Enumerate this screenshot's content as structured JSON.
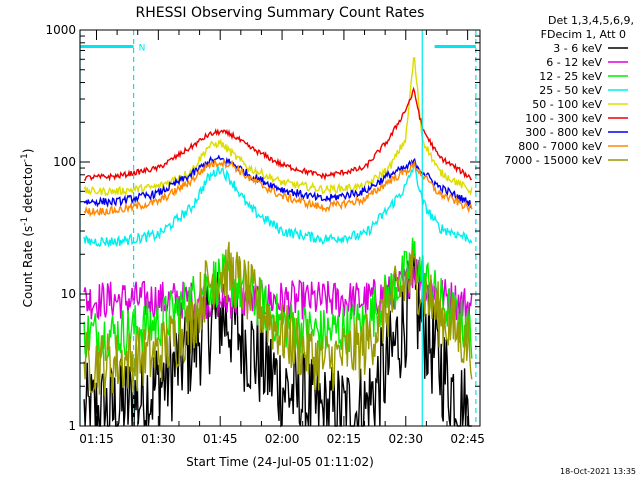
{
  "chart_data": {
    "type": "line",
    "title": "RHESSI Observing Summary Count Rates",
    "xlabel": "Start Time (24-Jul-05 01:11:02)",
    "ylabel_main": "Count Rate (s",
    "ylabel_sup1": "-1",
    "ylabel_mid": " detector",
    "ylabel_sup2": "-1",
    "ylabel_end": ")",
    "y_scale": "log",
    "ylim": [
      1,
      1000
    ],
    "xlim": [
      "01:11",
      "02:48"
    ],
    "y_ticks": [
      "1",
      "10",
      "100",
      "1000"
    ],
    "x_ticks": [
      {
        "label": "01:15",
        "t": "01:15"
      },
      {
        "label": "01:30",
        "t": "01:30"
      },
      {
        "label": "01:45",
        "t": "01:45"
      },
      {
        "label": "02:00",
        "t": "02:00"
      },
      {
        "label": "02:15",
        "t": "02:15"
      },
      {
        "label": "02:30",
        "t": "02:30"
      },
      {
        "label": "02:45",
        "t": "02:45"
      }
    ],
    "legend_header": [
      "Det 1,3,4,5,6,9,",
      "FDecim 1, Att 0"
    ],
    "legend_position": "right",
    "markers": {
      "night_bars": [
        {
          "from": "01:11",
          "to": "01:24"
        },
        {
          "from": "02:37",
          "to": "02:47"
        }
      ],
      "night_label": "N",
      "lines": [
        "01:11",
        "01:24",
        "02:34",
        "02:47"
      ]
    },
    "timestamp": "18-Oct-2021 13:35",
    "x_hours": [
      "01:12",
      "01:20",
      "01:30",
      "01:38",
      "01:42",
      "01:45",
      "01:48",
      "01:52",
      "02:00",
      "02:10",
      "02:20",
      "02:26",
      "02:30",
      "02:32",
      "02:34",
      "02:38",
      "02:46"
    ],
    "series": [
      {
        "name": "3 - 6 keV",
        "color": "#000000",
        "noise": 0.4,
        "values": [
          1.2,
          1.3,
          2.0,
          4.0,
          6.0,
          7.0,
          6.0,
          4.0,
          2.0,
          1.2,
          1.3,
          3.0,
          7.0,
          9.0,
          6.0,
          3.0,
          1.0
        ]
      },
      {
        "name": "6 - 12 keV",
        "color": "#dd00dd",
        "noise": 0.15,
        "values": [
          9.0,
          9.0,
          9.0,
          9.0,
          9.0,
          9.0,
          9.0,
          9.0,
          9.0,
          9.0,
          9.0,
          10.0,
          12.0,
          16.0,
          13.0,
          10.0,
          8.0
        ]
      },
      {
        "name": "12 - 25 keV",
        "color": "#00ee00",
        "noise": 0.2,
        "values": [
          5.0,
          5.0,
          6.0,
          9.0,
          12.0,
          13.0,
          12.0,
          10.0,
          6.0,
          5.0,
          6.0,
          10.0,
          14.0,
          20.0,
          14.0,
          9.0,
          5.0
        ]
      },
      {
        "name": "25 - 50 keV",
        "color": "#00eeee",
        "noise": 0.04,
        "values": [
          25.0,
          25.0,
          28.0,
          45.0,
          75.0,
          90.0,
          70.0,
          45.0,
          30.0,
          26.0,
          28.0,
          45.0,
          65.0,
          95.0,
          50.0,
          32.0,
          26.0
        ]
      },
      {
        "name": "50 - 100 keV",
        "color": "#dddd00",
        "noise": 0.03,
        "values": [
          60.0,
          60.0,
          65.0,
          85.0,
          130.0,
          140.0,
          115.0,
          90.0,
          70.0,
          62.0,
          65.0,
          90.0,
          150.0,
          650.0,
          150.0,
          85.0,
          60.0
        ]
      },
      {
        "name": "100 - 300 keV",
        "color": "#ee0000",
        "noise": 0.02,
        "values": [
          76.0,
          78.0,
          90.0,
          130.0,
          160.0,
          170.0,
          160.0,
          130.0,
          95.0,
          78.0,
          90.0,
          150.0,
          250.0,
          350.0,
          180.0,
          110.0,
          75.0
        ]
      },
      {
        "name": "300 - 800 keV",
        "color": "#0000ee",
        "noise": 0.03,
        "values": [
          50.0,
          50.0,
          58.0,
          80.0,
          100.0,
          105.0,
          98.0,
          80.0,
          62.0,
          52.0,
          60.0,
          80.0,
          90.0,
          100.0,
          85.0,
          65.0,
          48.0
        ]
      },
      {
        "name": "800 - 7000 keV",
        "color": "#ff8800",
        "noise": 0.03,
        "values": [
          42.0,
          43.0,
          50.0,
          72.0,
          95.0,
          100.0,
          95.0,
          75.0,
          55.0,
          45.0,
          52.0,
          72.0,
          85.0,
          95.0,
          80.0,
          58.0,
          44.0
        ]
      },
      {
        "name": "7000 - 15000 keV",
        "color": "#999900",
        "noise": 0.25,
        "values": [
          3.0,
          3.0,
          3.5,
          6.0,
          12.0,
          15.0,
          14.0,
          10.0,
          5.0,
          3.0,
          4.0,
          8.0,
          12.0,
          14.0,
          11.0,
          7.0,
          4.0
        ]
      }
    ]
  }
}
